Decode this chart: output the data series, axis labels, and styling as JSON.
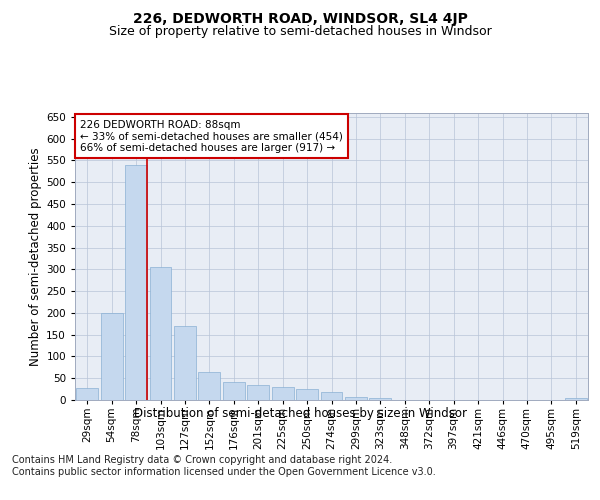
{
  "title": "226, DEDWORTH ROAD, WINDSOR, SL4 4JP",
  "subtitle": "Size of property relative to semi-detached houses in Windsor",
  "xlabel": "Distribution of semi-detached houses by size in Windsor",
  "ylabel": "Number of semi-detached properties",
  "categories": [
    "29sqm",
    "54sqm",
    "78sqm",
    "103sqm",
    "127sqm",
    "152sqm",
    "176sqm",
    "201sqm",
    "225sqm",
    "250sqm",
    "274sqm",
    "299sqm",
    "323sqm",
    "348sqm",
    "372sqm",
    "397sqm",
    "421sqm",
    "446sqm",
    "470sqm",
    "495sqm",
    "519sqm"
  ],
  "values": [
    28,
    200,
    540,
    305,
    170,
    65,
    42,
    35,
    30,
    25,
    18,
    8,
    5,
    0,
    0,
    0,
    0,
    0,
    0,
    0,
    5
  ],
  "bar_color": "#c5d8ee",
  "bar_edge_color": "#8ab0d4",
  "vline_x_index": 2,
  "vline_color": "#cc0000",
  "annotation_text": "226 DEDWORTH ROAD: 88sqm\n← 33% of semi-detached houses are smaller (454)\n66% of semi-detached houses are larger (917) →",
  "annotation_box_color": "#ffffff",
  "annotation_box_edge": "#cc0000",
  "footer_text": "Contains HM Land Registry data © Crown copyright and database right 2024.\nContains public sector information licensed under the Open Government Licence v3.0.",
  "ylim": [
    0,
    660
  ],
  "yticks": [
    0,
    50,
    100,
    150,
    200,
    250,
    300,
    350,
    400,
    450,
    500,
    550,
    600,
    650
  ],
  "plot_bg_color": "#e8edf5",
  "title_fontsize": 10,
  "subtitle_fontsize": 9,
  "axis_label_fontsize": 8.5,
  "tick_fontsize": 7.5,
  "footer_fontsize": 7,
  "annotation_fontsize": 7.5
}
